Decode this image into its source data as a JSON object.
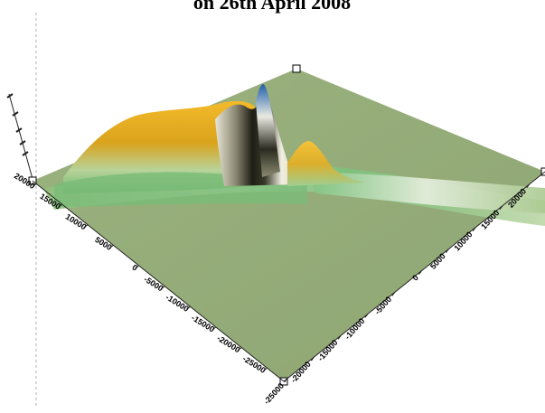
{
  "chart_data": {
    "type": "surface",
    "title": "on 26th April 2008",
    "xlabel": "",
    "ylabel": "",
    "zlabel": "",
    "left_axis_ticks": [
      "20000",
      "15000",
      "10000",
      "5000",
      "0",
      "-5000",
      "-10000",
      "-15000",
      "-20000",
      "-25000"
    ],
    "right_axis_ticks": [
      "-25000",
      "-20000",
      "-15000",
      "-10000",
      "-5000",
      "0",
      "5000",
      "10000",
      "15000",
      "20000"
    ],
    "vertical_axis_ticks": [
      "",
      "",
      "",
      "",
      ""
    ],
    "grid": false,
    "legend": "none",
    "colors": {
      "base": "#93ac78",
      "low_band": "#6fb56f",
      "mid_band": "#f2f2ea",
      "ridge": "#e0a818",
      "peak": "#1f5fa8",
      "shadow": "#1a1a12"
    }
  }
}
